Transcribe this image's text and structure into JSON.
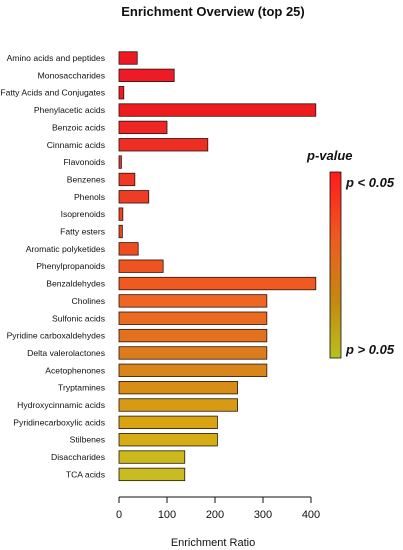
{
  "chart_data": {
    "type": "bar",
    "orientation": "horizontal",
    "title": "Enrichment Overview (top 25)",
    "xlabel": "Enrichment Ratio",
    "ylabel": "",
    "xlim": [
      0,
      420
    ],
    "xticks": [
      0,
      100,
      200,
      300,
      400
    ],
    "grid": false,
    "categories": [
      "Amino acids and peptides",
      "Monosaccharides",
      "Fatty Acids and Conjugates",
      "Phenylacetic acids",
      "Benzoic acids",
      "Cinnamic acids",
      "Flavonoids",
      "Benzenes",
      "Phenols",
      "Isoprenoids",
      "Fatty esters",
      "Aromatic polyketides",
      "Phenylpropanoids",
      "Benzaldehydes",
      "Cholines",
      "Sulfonic acids",
      "Pyridine carboxaldehydes",
      "Delta valerolactones",
      "Acetophenones",
      "Tryptamines",
      "Hydroxycinnamic acids",
      "Pyridinecarboxylic acids",
      "Stilbenes",
      "Disaccharides",
      "TCA acids"
    ],
    "values": [
      38,
      115,
      10,
      410,
      100,
      185,
      5,
      33,
      62,
      8,
      7,
      40,
      92,
      410,
      308,
      308,
      308,
      308,
      308,
      247,
      247,
      205,
      205,
      137,
      137
    ],
    "bar_colors": [
      "#ee1a22",
      "#ee1b24",
      "#ee1c22",
      "#ee1b1e",
      "#ee2624",
      "#ee2e22",
      "#ee3424",
      "#ee3a24",
      "#ee3d24",
      "#ee4222",
      "#ee4622",
      "#ee4d20",
      "#ee5420",
      "#ee5a20",
      "#ee6622",
      "#ea6a20",
      "#e2721e",
      "#dc7c1c",
      "#d8861a",
      "#d88e16",
      "#d89a14",
      "#d8a412",
      "#d4ac14",
      "#ccba1c",
      "#c8bc22"
    ],
    "legend": {
      "title": "p-value",
      "high_label": "p < 0.05",
      "low_label": "p > 0.05",
      "placement": "right",
      "gradient": [
        "#ff1a1a",
        "#ee5a20",
        "#c48a10",
        "#b8c020"
      ]
    }
  }
}
